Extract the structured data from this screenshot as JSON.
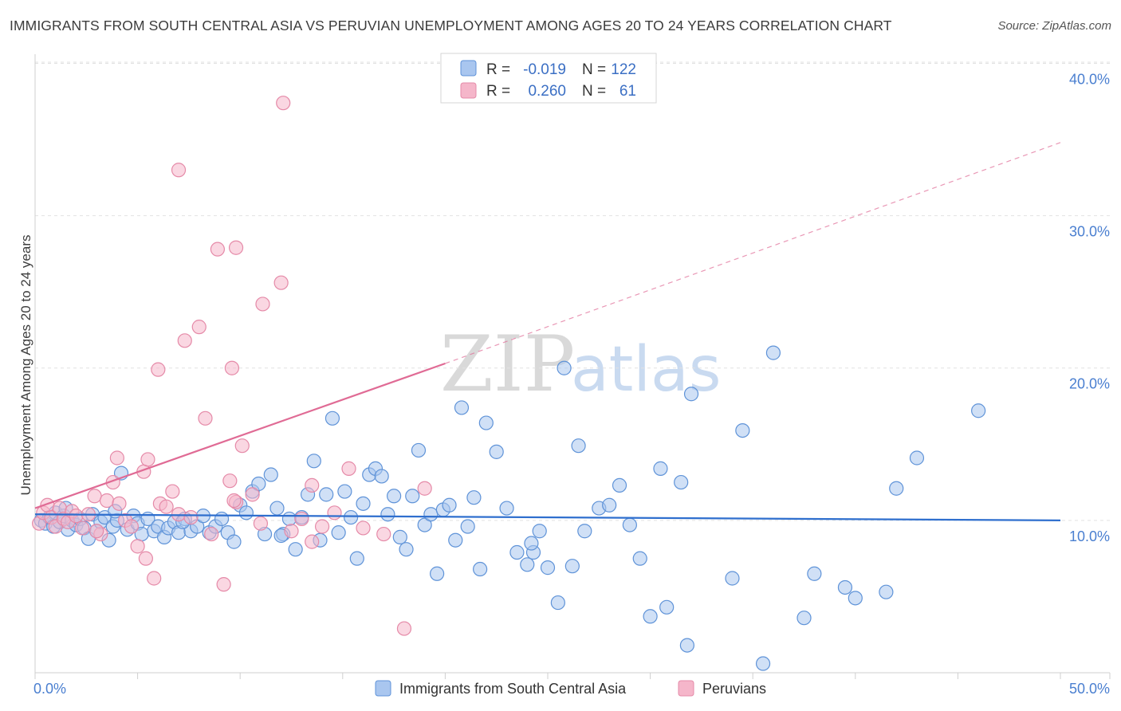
{
  "title": "IMMIGRANTS FROM SOUTH CENTRAL ASIA VS PERUVIAN UNEMPLOYMENT AMONG AGES 20 TO 24 YEARS CORRELATION CHART",
  "source": "Source: ZipAtlas.com",
  "watermark": {
    "zip": "ZIP",
    "atlas": "atlas"
  },
  "legend": {
    "r_label": "R =",
    "n_label": "N =",
    "rows": [
      {
        "r": "-0.019",
        "n": "122",
        "color": "#a9c6ef"
      },
      {
        "r": "0.260",
        "n": "61",
        "color": "#f5b6ca"
      }
    ]
  },
  "bottom_legend": [
    {
      "label": "Immigrants from South Central Asia",
      "color": "#a9c6ef"
    },
    {
      "label": "Peruvians",
      "color": "#f5b6ca"
    }
  ],
  "chart_data": {
    "type": "scatter",
    "title": "IMMIGRANTS FROM SOUTH CENTRAL ASIA VS PERUVIAN UNEMPLOYMENT AMONG AGES 20 TO 24 YEARS CORRELATION CHART",
    "xlabel": "",
    "ylabel": "Unemployment Among Ages 20 to 24 years",
    "xlim": [
      0,
      50
    ],
    "ylim": [
      0,
      40.6
    ],
    "x_tick_labels": [
      "0.0%",
      "50.0%"
    ],
    "y_ticks": [
      10,
      20,
      30,
      40
    ],
    "y_tick_labels": [
      "10.0%",
      "20.0%",
      "30.0%",
      "40.0%"
    ],
    "grid": true,
    "legend_placement": "top-center",
    "series": [
      {
        "name": "Immigrants from South Central Asia",
        "color": "#a9c6ef",
        "stroke": "#5f93d8",
        "trend": {
          "x0": 0,
          "y0": 10.4,
          "x1": 50,
          "y1": 10.0,
          "color": "#2f6fce"
        },
        "points": [
          [
            0.3,
            10.0
          ],
          [
            0.5,
            9.8
          ],
          [
            0.7,
            10.2
          ],
          [
            0.9,
            9.6
          ],
          [
            1.0,
            10.5
          ],
          [
            1.2,
            9.9
          ],
          [
            1.4,
            10.3
          ],
          [
            1.6,
            9.4
          ],
          [
            1.8,
            10.0
          ],
          [
            2.0,
            9.7
          ],
          [
            2.2,
            10.1
          ],
          [
            2.4,
            9.5
          ],
          [
            2.6,
            8.8
          ],
          [
            2.8,
            10.4
          ],
          [
            3.0,
            9.3
          ],
          [
            3.2,
            9.9
          ],
          [
            3.4,
            10.2
          ],
          [
            3.6,
            8.7
          ],
          [
            3.8,
            9.6
          ],
          [
            4.0,
            10.0
          ],
          [
            4.2,
            13.1
          ],
          [
            4.5,
            9.4
          ],
          [
            4.8,
            10.3
          ],
          [
            5.0,
            9.8
          ],
          [
            5.2,
            9.1
          ],
          [
            5.5,
            10.1
          ],
          [
            5.8,
            9.3
          ],
          [
            6.0,
            9.6
          ],
          [
            6.3,
            8.9
          ],
          [
            6.5,
            9.5
          ],
          [
            6.8,
            9.9
          ],
          [
            7.0,
            9.2
          ],
          [
            7.3,
            10.1
          ],
          [
            7.6,
            9.3
          ],
          [
            7.9,
            9.6
          ],
          [
            8.2,
            10.3
          ],
          [
            8.5,
            9.2
          ],
          [
            8.8,
            9.6
          ],
          [
            9.1,
            10.1
          ],
          [
            9.4,
            9.2
          ],
          [
            9.7,
            8.6
          ],
          [
            10.0,
            11.0
          ],
          [
            10.3,
            10.5
          ],
          [
            10.6,
            11.9
          ],
          [
            10.9,
            12.4
          ],
          [
            11.2,
            9.1
          ],
          [
            11.5,
            13.0
          ],
          [
            11.8,
            10.8
          ],
          [
            12.1,
            9.1
          ],
          [
            12.4,
            10.1
          ],
          [
            12.7,
            8.1
          ],
          [
            13.0,
            10.2
          ],
          [
            13.3,
            11.7
          ],
          [
            13.6,
            13.9
          ],
          [
            13.9,
            8.7
          ],
          [
            14.2,
            11.7
          ],
          [
            14.5,
            16.7
          ],
          [
            14.8,
            9.2
          ],
          [
            15.1,
            11.9
          ],
          [
            15.4,
            10.2
          ],
          [
            15.7,
            7.5
          ],
          [
            16.0,
            11.1
          ],
          [
            16.3,
            13.0
          ],
          [
            16.6,
            13.4
          ],
          [
            16.9,
            12.9
          ],
          [
            17.2,
            10.4
          ],
          [
            17.5,
            11.6
          ],
          [
            17.8,
            8.9
          ],
          [
            18.1,
            8.1
          ],
          [
            18.4,
            11.6
          ],
          [
            18.7,
            14.6
          ],
          [
            19.0,
            9.7
          ],
          [
            19.3,
            10.4
          ],
          [
            19.6,
            6.5
          ],
          [
            19.9,
            10.7
          ],
          [
            20.2,
            11.0
          ],
          [
            20.5,
            8.7
          ],
          [
            20.8,
            17.4
          ],
          [
            21.1,
            9.6
          ],
          [
            21.4,
            11.5
          ],
          [
            21.7,
            6.8
          ],
          [
            22.0,
            16.4
          ],
          [
            22.5,
            14.5
          ],
          [
            23.0,
            10.8
          ],
          [
            23.5,
            7.9
          ],
          [
            24.0,
            7.1
          ],
          [
            24.3,
            7.9
          ],
          [
            24.6,
            9.3
          ],
          [
            25.0,
            6.9
          ],
          [
            25.5,
            4.6
          ],
          [
            25.8,
            20.0
          ],
          [
            26.2,
            7.0
          ],
          [
            26.5,
            14.9
          ],
          [
            26.8,
            9.3
          ],
          [
            27.5,
            10.8
          ],
          [
            28.0,
            11.0
          ],
          [
            28.5,
            12.3
          ],
          [
            29.0,
            9.7
          ],
          [
            29.5,
            7.5
          ],
          [
            30.0,
            3.7
          ],
          [
            30.5,
            13.4
          ],
          [
            30.8,
            4.3
          ],
          [
            31.5,
            12.5
          ],
          [
            31.8,
            1.8
          ],
          [
            32.0,
            18.3
          ],
          [
            34.0,
            6.2
          ],
          [
            34.5,
            15.9
          ],
          [
            35.5,
            0.6
          ],
          [
            36.0,
            21.0
          ],
          [
            37.5,
            3.6
          ],
          [
            38.0,
            6.5
          ],
          [
            39.5,
            5.6
          ],
          [
            40.0,
            4.9
          ],
          [
            41.5,
            5.3
          ],
          [
            42.0,
            12.1
          ],
          [
            43.0,
            14.1
          ],
          [
            46.0,
            17.2
          ],
          [
            24.2,
            8.5
          ],
          [
            12.0,
            9.0
          ],
          [
            7.2,
            9.9
          ],
          [
            3.9,
            10.6
          ],
          [
            1.5,
            10.8
          ]
        ]
      },
      {
        "name": "Peruvians",
        "color": "#f5b6ca",
        "stroke": "#e58aa8",
        "trend": {
          "x0": 0,
          "y0": 10.8,
          "x1": 20,
          "y1": 20.3,
          "dash_x1": 50,
          "dash_y1": 34.8,
          "color": "#e06b95"
        },
        "points": [
          [
            0.2,
            9.8
          ],
          [
            0.4,
            10.5
          ],
          [
            0.6,
            11.0
          ],
          [
            0.8,
            10.2
          ],
          [
            1.0,
            9.6
          ],
          [
            1.2,
            10.8
          ],
          [
            1.4,
            10.1
          ],
          [
            1.6,
            9.9
          ],
          [
            1.8,
            10.6
          ],
          [
            2.0,
            10.3
          ],
          [
            2.3,
            9.5
          ],
          [
            2.6,
            10.4
          ],
          [
            2.9,
            11.6
          ],
          [
            3.2,
            9.1
          ],
          [
            3.5,
            11.3
          ],
          [
            3.8,
            12.5
          ],
          [
            4.1,
            11.1
          ],
          [
            4.4,
            10.0
          ],
          [
            4.7,
            9.6
          ],
          [
            5.0,
            8.3
          ],
          [
            5.3,
            13.2
          ],
          [
            5.5,
            14.0
          ],
          [
            5.8,
            6.2
          ],
          [
            6.1,
            11.1
          ],
          [
            6.4,
            10.9
          ],
          [
            6.7,
            11.9
          ],
          [
            7.0,
            10.4
          ],
          [
            7.3,
            21.8
          ],
          [
            7.6,
            10.2
          ],
          [
            8.0,
            22.7
          ],
          [
            8.3,
            16.7
          ],
          [
            8.6,
            9.1
          ],
          [
            8.9,
            27.8
          ],
          [
            9.2,
            5.8
          ],
          [
            9.5,
            12.6
          ],
          [
            9.8,
            27.9
          ],
          [
            10.1,
            14.9
          ],
          [
            10.6,
            11.7
          ],
          [
            11.1,
            24.2
          ],
          [
            12.0,
            25.6
          ],
          [
            12.5,
            9.3
          ],
          [
            13.0,
            10.1
          ],
          [
            13.5,
            8.6
          ],
          [
            14.0,
            9.6
          ],
          [
            14.6,
            10.5
          ],
          [
            15.3,
            13.4
          ],
          [
            16.0,
            9.5
          ],
          [
            17.0,
            9.1
          ],
          [
            18.0,
            2.9
          ],
          [
            19.0,
            12.1
          ],
          [
            4.0,
            14.1
          ],
          [
            5.4,
            7.5
          ],
          [
            6.0,
            19.9
          ],
          [
            7.0,
            33.0
          ],
          [
            9.6,
            20.0
          ],
          [
            9.8,
            11.2
          ],
          [
            11.0,
            9.8
          ],
          [
            9.7,
            11.3
          ],
          [
            12.1,
            37.4
          ],
          [
            3.0,
            9.3
          ],
          [
            13.5,
            12.3
          ]
        ]
      }
    ]
  }
}
